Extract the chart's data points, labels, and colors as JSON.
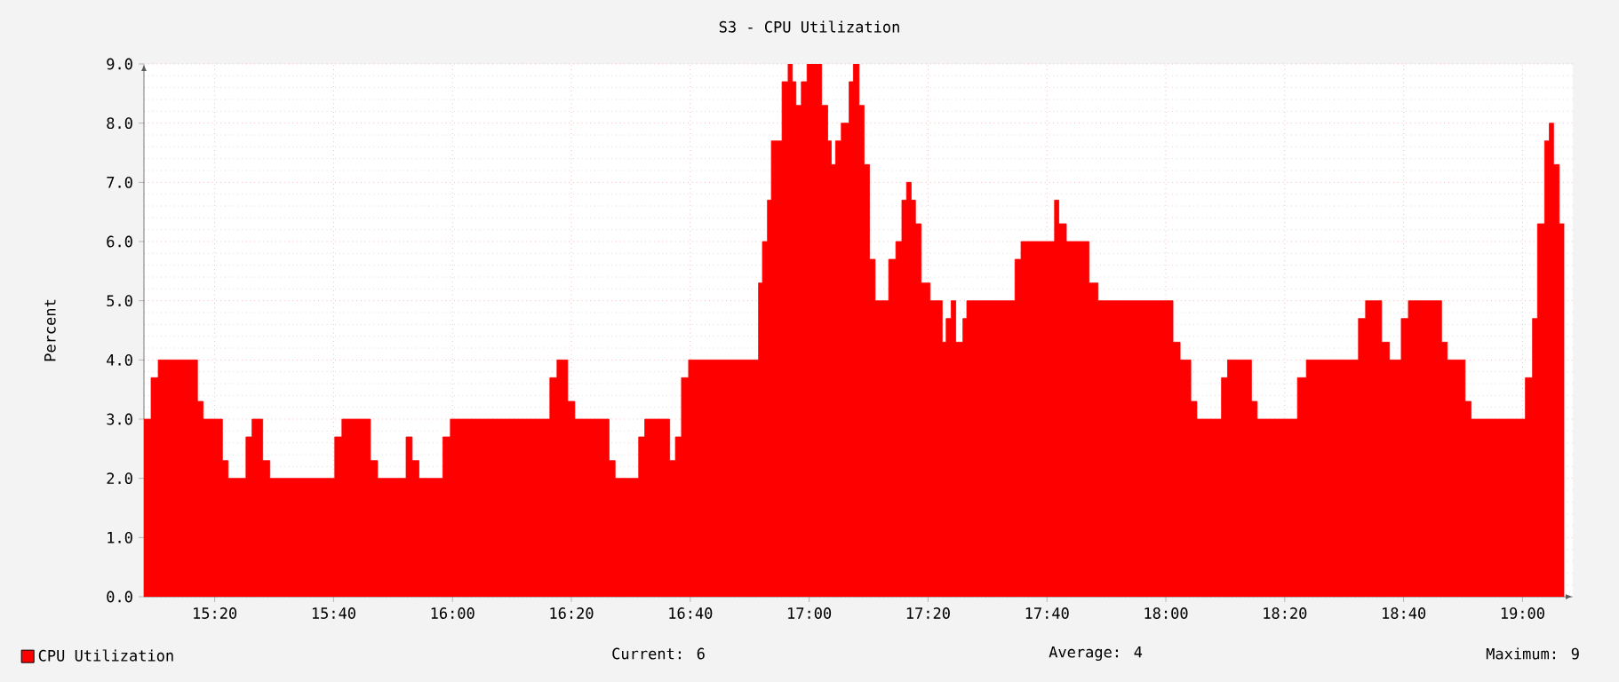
{
  "chart_data": {
    "type": "area",
    "title": "S3 - CPU Utilization",
    "ylabel": "Percent",
    "x": [
      15.135,
      15.155,
      15.155,
      15.175,
      15.175,
      15.285,
      15.285,
      15.301,
      15.301,
      15.355,
      15.355,
      15.371,
      15.371,
      15.421,
      15.421,
      15.438,
      15.438,
      15.468,
      15.468,
      15.488,
      15.488,
      15.67,
      15.67,
      15.69,
      15.69,
      15.77,
      15.77,
      15.79,
      15.79,
      15.87,
      15.87,
      15.887,
      15.887,
      15.906,
      15.906,
      15.973,
      15.973,
      15.994,
      15.994,
      16.273,
      16.273,
      16.293,
      16.293,
      16.323,
      16.323,
      16.343,
      16.343,
      16.439,
      16.439,
      16.456,
      16.456,
      16.522,
      16.522,
      16.539,
      16.539,
      16.609,
      16.609,
      16.625,
      16.625,
      16.642,
      16.642,
      16.662,
      16.662,
      16.858,
      16.858,
      16.869,
      16.869,
      16.883,
      16.883,
      16.894,
      16.894,
      16.924,
      16.924,
      16.941,
      16.941,
      16.953,
      16.953,
      16.963,
      16.963,
      16.978,
      16.978,
      16.994,
      16.994,
      17.035,
      17.035,
      17.052,
      17.052,
      17.062,
      17.062,
      17.074,
      17.074,
      17.09,
      17.09,
      17.112,
      17.112,
      17.124,
      17.124,
      17.14,
      17.14,
      17.154,
      17.154,
      17.169,
      17.169,
      17.185,
      17.185,
      17.223,
      17.223,
      17.243,
      17.243,
      17.26,
      17.26,
      17.273,
      17.273,
      17.286,
      17.286,
      17.298,
      17.298,
      17.314,
      17.314,
      17.339,
      17.339,
      17.373,
      17.373,
      17.384,
      17.384,
      17.398,
      17.398,
      17.411,
      17.411,
      17.431,
      17.431,
      17.442,
      17.442,
      17.577,
      17.577,
      17.594,
      17.594,
      17.688,
      17.688,
      17.7,
      17.7,
      17.721,
      17.721,
      17.785,
      17.785,
      17.81,
      17.81,
      18.02,
      18.02,
      18.04,
      18.04,
      18.07,
      18.07,
      18.087,
      18.087,
      18.156,
      18.156,
      18.173,
      18.173,
      18.24,
      18.24,
      18.256,
      18.256,
      18.369,
      18.369,
      18.394,
      18.394,
      18.54,
      18.54,
      18.56,
      18.56,
      18.605,
      18.605,
      18.627,
      18.627,
      18.66,
      18.66,
      18.68,
      18.68,
      18.773,
      18.773,
      18.789,
      18.789,
      18.839,
      18.839,
      18.856,
      18.856,
      19.008,
      19.008,
      19.028,
      19.028,
      19.042,
      19.042,
      19.062,
      19.062,
      19.075,
      19.075,
      19.087,
      19.087,
      19.103,
      19.103,
      19.117
    ],
    "series": [
      {
        "name": "CPU Utilization",
        "color": "#ff0000",
        "values": [
          3.0,
          3.0,
          3.7,
          3.7,
          4.0,
          4.0,
          3.3,
          3.3,
          3.0,
          3.0,
          2.3,
          2.3,
          2.0,
          2.0,
          2.7,
          2.7,
          3.0,
          3.0,
          2.3,
          2.3,
          2.0,
          2.0,
          2.7,
          2.7,
          3.0,
          3.0,
          2.3,
          2.3,
          2.0,
          2.0,
          2.7,
          2.7,
          2.3,
          2.3,
          2.0,
          2.0,
          2.7,
          2.7,
          3.0,
          3.0,
          3.7,
          3.7,
          4.0,
          4.0,
          3.3,
          3.3,
          3.0,
          3.0,
          2.3,
          2.3,
          2.0,
          2.0,
          2.7,
          2.7,
          3.0,
          3.0,
          2.3,
          2.3,
          2.7,
          2.7,
          3.7,
          3.7,
          4.0,
          4.0,
          5.3,
          5.3,
          6.0,
          6.0,
          6.7,
          6.7,
          7.7,
          7.7,
          8.7,
          8.7,
          9.0,
          9.0,
          8.7,
          8.7,
          8.3,
          8.3,
          8.7,
          8.7,
          9.0,
          9.0,
          8.3,
          8.3,
          7.7,
          7.7,
          7.3,
          7.3,
          7.7,
          7.7,
          8.0,
          8.0,
          8.7,
          8.7,
          9.0,
          9.0,
          8.3,
          8.3,
          7.3,
          7.3,
          5.7,
          5.7,
          5.0,
          5.0,
          5.7,
          5.7,
          6.0,
          6.0,
          6.7,
          6.7,
          7.0,
          7.0,
          6.7,
          6.7,
          6.3,
          6.3,
          5.3,
          5.3,
          5.0,
          5.0,
          4.3,
          4.3,
          4.7,
          4.7,
          5.0,
          5.0,
          4.3,
          4.3,
          4.7,
          4.7,
          5.0,
          5.0,
          5.7,
          5.7,
          6.0,
          6.0,
          6.7,
          6.7,
          6.3,
          6.3,
          6.0,
          6.0,
          5.3,
          5.3,
          5.0,
          5.0,
          4.3,
          4.3,
          4.0,
          4.0,
          3.3,
          3.3,
          3.0,
          3.0,
          3.7,
          3.7,
          4.0,
          4.0,
          3.3,
          3.3,
          3.0,
          3.0,
          3.7,
          3.7,
          4.0,
          4.0,
          4.7,
          4.7,
          5.0,
          5.0,
          4.3,
          4.3,
          4.0,
          4.0,
          4.7,
          4.7,
          5.0,
          5.0,
          4.3,
          4.3,
          4.0,
          4.0,
          3.3,
          3.3,
          3.0,
          3.0,
          3.7,
          3.7,
          4.7,
          4.7,
          6.3,
          6.3,
          7.7,
          7.7,
          8.0,
          8.0,
          7.3,
          7.3,
          6.3,
          6.3
        ]
      }
    ],
    "xlim": [
      15.135,
      19.141
    ],
    "xticks": [
      {
        "value": 15.3333,
        "label": "15:20"
      },
      {
        "value": 15.6667,
        "label": "15:40"
      },
      {
        "value": 16,
        "label": "16:00"
      },
      {
        "value": 16.3333,
        "label": "16:20"
      },
      {
        "value": 16.6667,
        "label": "16:40"
      },
      {
        "value": 17,
        "label": "17:00"
      },
      {
        "value": 17.3333,
        "label": "17:20"
      },
      {
        "value": 17.6667,
        "label": "17:40"
      },
      {
        "value": 18,
        "label": "18:00"
      },
      {
        "value": 18.3333,
        "label": "18:20"
      },
      {
        "value": 18.6667,
        "label": "18:40"
      },
      {
        "value": 19,
        "label": "19:00"
      }
    ],
    "ylim": [
      0,
      9
    ],
    "yticks": [
      {
        "value": 0,
        "label": "0.0"
      },
      {
        "value": 1,
        "label": "1.0"
      },
      {
        "value": 2,
        "label": "2.0"
      },
      {
        "value": 3,
        "label": "3.0"
      },
      {
        "value": 4,
        "label": "4.0"
      },
      {
        "value": 5,
        "label": "5.0"
      },
      {
        "value": 6,
        "label": "6.0"
      },
      {
        "value": 7,
        "label": "7.0"
      },
      {
        "value": 8,
        "label": "8.0"
      },
      {
        "value": 9,
        "label": "9.0"
      }
    ],
    "grid": true,
    "legend": "bottom left",
    "annotations": [
      "Current: 6",
      "Average: 4",
      "Maximum: 9"
    ]
  }
}
